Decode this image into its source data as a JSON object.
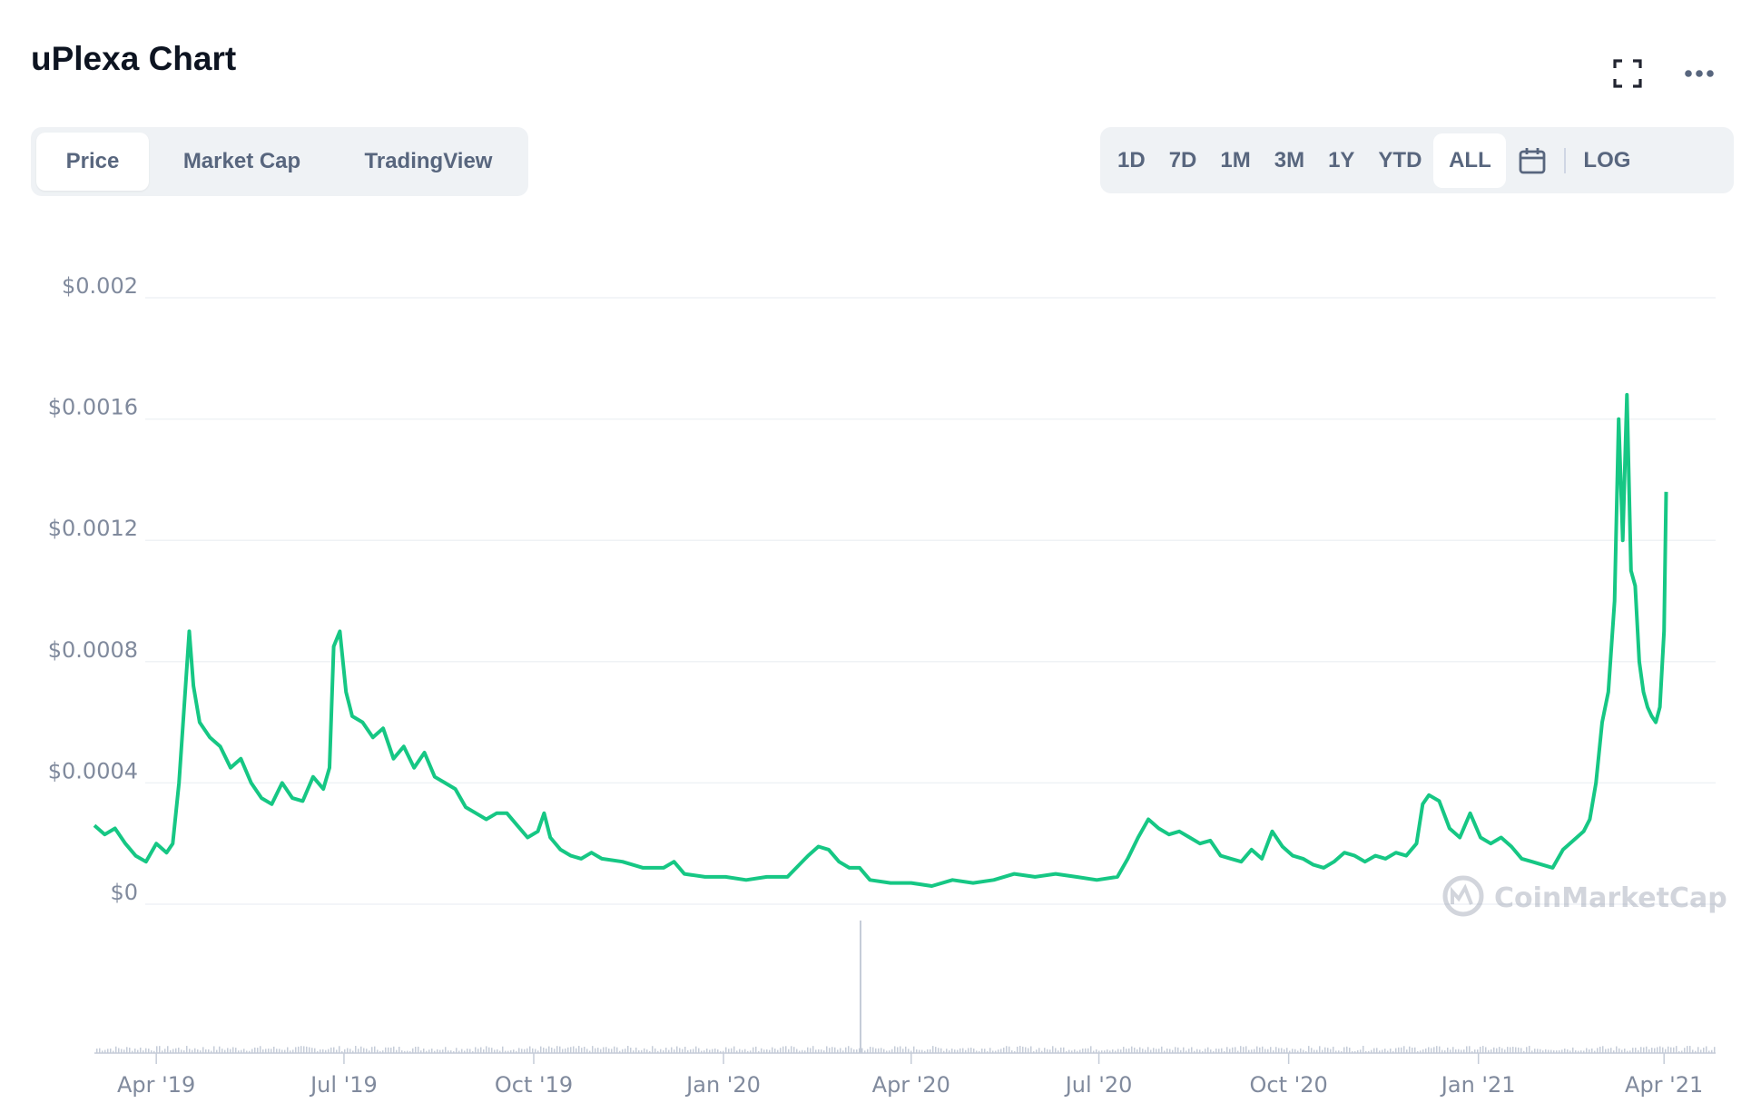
{
  "header": {
    "title": "uPlexa Chart",
    "fullscreen_icon": "fullscreen-icon",
    "more_icon": "more-horizontal-icon"
  },
  "tabs": [
    {
      "label": "Price",
      "active": true
    },
    {
      "label": "Market Cap",
      "active": false
    },
    {
      "label": "TradingView",
      "active": false
    }
  ],
  "ranges": [
    {
      "label": "1D",
      "active": false
    },
    {
      "label": "7D",
      "active": false
    },
    {
      "label": "1M",
      "active": false
    },
    {
      "label": "3M",
      "active": false
    },
    {
      "label": "1Y",
      "active": false
    },
    {
      "label": "YTD",
      "active": false
    },
    {
      "label": "ALL",
      "active": true
    }
  ],
  "calendar_icon": "calendar-icon",
  "log_label": "LOG",
  "watermark": "CoinMarketCap",
  "colors": {
    "line": "#16c784",
    "grid": "#eff2f5",
    "axis_text": "#808a9d",
    "volume": "#c5ccd8"
  },
  "chart_data": {
    "type": "line",
    "title": "uPlexa Chart",
    "xlabel": "",
    "ylabel": "",
    "ylim": [
      0,
      0.002
    ],
    "y_ticks": [
      {
        "value": 0,
        "label": "$0"
      },
      {
        "value": 0.0004,
        "label": "$0.0004"
      },
      {
        "value": 0.0008,
        "label": "$0.0008"
      },
      {
        "value": 0.0012,
        "label": "$0.0012"
      },
      {
        "value": 0.0016,
        "label": "$0.0016"
      },
      {
        "value": 0.002,
        "label": "$0.002"
      }
    ],
    "x_range": [
      "2019-03-02",
      "2021-04-26"
    ],
    "x_ticks": [
      {
        "date": "2019-04-01",
        "label": "Apr '19"
      },
      {
        "date": "2019-07-01",
        "label": "Jul '19"
      },
      {
        "date": "2019-10-01",
        "label": "Oct '19"
      },
      {
        "date": "2020-01-01",
        "label": "Jan '20"
      },
      {
        "date": "2020-04-01",
        "label": "Apr '20"
      },
      {
        "date": "2020-07-01",
        "label": "Jul '20"
      },
      {
        "date": "2020-10-01",
        "label": "Oct '20"
      },
      {
        "date": "2021-01-01",
        "label": "Jan '21"
      },
      {
        "date": "2021-04-01",
        "label": "Apr '21"
      }
    ],
    "series": [
      {
        "points": [
          [
            "2019-03-02",
            0.00026
          ],
          [
            "2019-03-07",
            0.00023
          ],
          [
            "2019-03-12",
            0.00025
          ],
          [
            "2019-03-17",
            0.0002
          ],
          [
            "2019-03-22",
            0.00016
          ],
          [
            "2019-03-27",
            0.00014
          ],
          [
            "2019-04-01",
            0.0002
          ],
          [
            "2019-04-06",
            0.00017
          ],
          [
            "2019-04-09",
            0.0002
          ],
          [
            "2019-04-12",
            0.0004
          ],
          [
            "2019-04-15",
            0.0007
          ],
          [
            "2019-04-17",
            0.0009
          ],
          [
            "2019-04-19",
            0.00072
          ],
          [
            "2019-04-22",
            0.0006
          ],
          [
            "2019-04-27",
            0.00055
          ],
          [
            "2019-05-02",
            0.00052
          ],
          [
            "2019-05-07",
            0.00045
          ],
          [
            "2019-05-12",
            0.00048
          ],
          [
            "2019-05-17",
            0.0004
          ],
          [
            "2019-05-22",
            0.00035
          ],
          [
            "2019-05-27",
            0.00033
          ],
          [
            "2019-06-01",
            0.0004
          ],
          [
            "2019-06-06",
            0.00035
          ],
          [
            "2019-06-11",
            0.00034
          ],
          [
            "2019-06-16",
            0.00042
          ],
          [
            "2019-06-21",
            0.00038
          ],
          [
            "2019-06-24",
            0.00045
          ],
          [
            "2019-06-26",
            0.00085
          ],
          [
            "2019-06-29",
            0.0009
          ],
          [
            "2019-07-02",
            0.0007
          ],
          [
            "2019-07-05",
            0.00062
          ],
          [
            "2019-07-10",
            0.0006
          ],
          [
            "2019-07-15",
            0.00055
          ],
          [
            "2019-07-20",
            0.00058
          ],
          [
            "2019-07-25",
            0.00048
          ],
          [
            "2019-07-30",
            0.00052
          ],
          [
            "2019-08-04",
            0.00045
          ],
          [
            "2019-08-09",
            0.0005
          ],
          [
            "2019-08-14",
            0.00042
          ],
          [
            "2019-08-19",
            0.0004
          ],
          [
            "2019-08-24",
            0.00038
          ],
          [
            "2019-08-29",
            0.00032
          ],
          [
            "2019-09-03",
            0.0003
          ],
          [
            "2019-09-08",
            0.00028
          ],
          [
            "2019-09-13",
            0.0003
          ],
          [
            "2019-09-18",
            0.0003
          ],
          [
            "2019-09-23",
            0.00026
          ],
          [
            "2019-09-28",
            0.00022
          ],
          [
            "2019-10-03",
            0.00024
          ],
          [
            "2019-10-06",
            0.0003
          ],
          [
            "2019-10-09",
            0.00022
          ],
          [
            "2019-10-14",
            0.00018
          ],
          [
            "2019-10-19",
            0.00016
          ],
          [
            "2019-10-24",
            0.00015
          ],
          [
            "2019-10-29",
            0.00017
          ],
          [
            "2019-11-03",
            0.00015
          ],
          [
            "2019-11-13",
            0.00014
          ],
          [
            "2019-11-23",
            0.00012
          ],
          [
            "2019-12-03",
            0.00012
          ],
          [
            "2019-12-08",
            0.00014
          ],
          [
            "2019-12-13",
            0.0001
          ],
          [
            "2019-12-23",
            9e-05
          ],
          [
            "2020-01-02",
            9e-05
          ],
          [
            "2020-01-12",
            8e-05
          ],
          [
            "2020-01-22",
            9e-05
          ],
          [
            "2020-02-01",
            9e-05
          ],
          [
            "2020-02-11",
            0.00016
          ],
          [
            "2020-02-16",
            0.00019
          ],
          [
            "2020-02-21",
            0.00018
          ],
          [
            "2020-02-26",
            0.00014
          ],
          [
            "2020-03-02",
            0.00012
          ],
          [
            "2020-03-07",
            0.00012
          ],
          [
            "2020-03-12",
            8e-05
          ],
          [
            "2020-03-22",
            7e-05
          ],
          [
            "2020-04-01",
            7e-05
          ],
          [
            "2020-04-11",
            6e-05
          ],
          [
            "2020-04-21",
            8e-05
          ],
          [
            "2020-05-01",
            7e-05
          ],
          [
            "2020-05-11",
            8e-05
          ],
          [
            "2020-05-21",
            0.0001
          ],
          [
            "2020-05-31",
            9e-05
          ],
          [
            "2020-06-10",
            0.0001
          ],
          [
            "2020-06-20",
            9e-05
          ],
          [
            "2020-06-30",
            8e-05
          ],
          [
            "2020-07-10",
            9e-05
          ],
          [
            "2020-07-15",
            0.00015
          ],
          [
            "2020-07-20",
            0.00022
          ],
          [
            "2020-07-25",
            0.00028
          ],
          [
            "2020-07-30",
            0.00025
          ],
          [
            "2020-08-04",
            0.00023
          ],
          [
            "2020-08-09",
            0.00024
          ],
          [
            "2020-08-14",
            0.00022
          ],
          [
            "2020-08-19",
            0.0002
          ],
          [
            "2020-08-24",
            0.00021
          ],
          [
            "2020-08-29",
            0.00016
          ],
          [
            "2020-09-03",
            0.00015
          ],
          [
            "2020-09-08",
            0.00014
          ],
          [
            "2020-09-13",
            0.00018
          ],
          [
            "2020-09-18",
            0.00015
          ],
          [
            "2020-09-23",
            0.00024
          ],
          [
            "2020-09-28",
            0.00019
          ],
          [
            "2020-10-03",
            0.00016
          ],
          [
            "2020-10-08",
            0.00015
          ],
          [
            "2020-10-13",
            0.00013
          ],
          [
            "2020-10-18",
            0.00012
          ],
          [
            "2020-10-23",
            0.00014
          ],
          [
            "2020-10-28",
            0.00017
          ],
          [
            "2020-11-02",
            0.00016
          ],
          [
            "2020-11-07",
            0.00014
          ],
          [
            "2020-11-12",
            0.00016
          ],
          [
            "2020-11-17",
            0.00015
          ],
          [
            "2020-11-22",
            0.00017
          ],
          [
            "2020-11-27",
            0.00016
          ],
          [
            "2020-12-02",
            0.0002
          ],
          [
            "2020-12-05",
            0.00033
          ],
          [
            "2020-12-08",
            0.00036
          ],
          [
            "2020-12-13",
            0.00034
          ],
          [
            "2020-12-18",
            0.00025
          ],
          [
            "2020-12-23",
            0.00022
          ],
          [
            "2020-12-28",
            0.0003
          ],
          [
            "2021-01-02",
            0.00022
          ],
          [
            "2021-01-07",
            0.0002
          ],
          [
            "2021-01-12",
            0.00022
          ],
          [
            "2021-01-17",
            0.00019
          ],
          [
            "2021-01-22",
            0.00015
          ],
          [
            "2021-01-27",
            0.00014
          ],
          [
            "2021-02-01",
            0.00013
          ],
          [
            "2021-02-06",
            0.00012
          ],
          [
            "2021-02-11",
            0.00018
          ],
          [
            "2021-02-16",
            0.00021
          ],
          [
            "2021-02-21",
            0.00024
          ],
          [
            "2021-02-24",
            0.00028
          ],
          [
            "2021-02-27",
            0.0004
          ],
          [
            "2021-03-02",
            0.0006
          ],
          [
            "2021-03-05",
            0.0007
          ],
          [
            "2021-03-08",
            0.001
          ],
          [
            "2021-03-10",
            0.0016
          ],
          [
            "2021-03-12",
            0.0012
          ],
          [
            "2021-03-14",
            0.00168
          ],
          [
            "2021-03-16",
            0.0011
          ],
          [
            "2021-03-18",
            0.00105
          ],
          [
            "2021-03-20",
            0.0008
          ],
          [
            "2021-03-22",
            0.0007
          ],
          [
            "2021-03-24",
            0.00065
          ],
          [
            "2021-03-26",
            0.00062
          ],
          [
            "2021-03-28",
            0.0006
          ],
          [
            "2021-03-30",
            0.00065
          ],
          [
            "2021-04-01",
            0.0009
          ],
          [
            "2021-04-02",
            0.00136
          ]
        ]
      }
    ],
    "volume_spike": {
      "date": "2020-03-07"
    }
  }
}
